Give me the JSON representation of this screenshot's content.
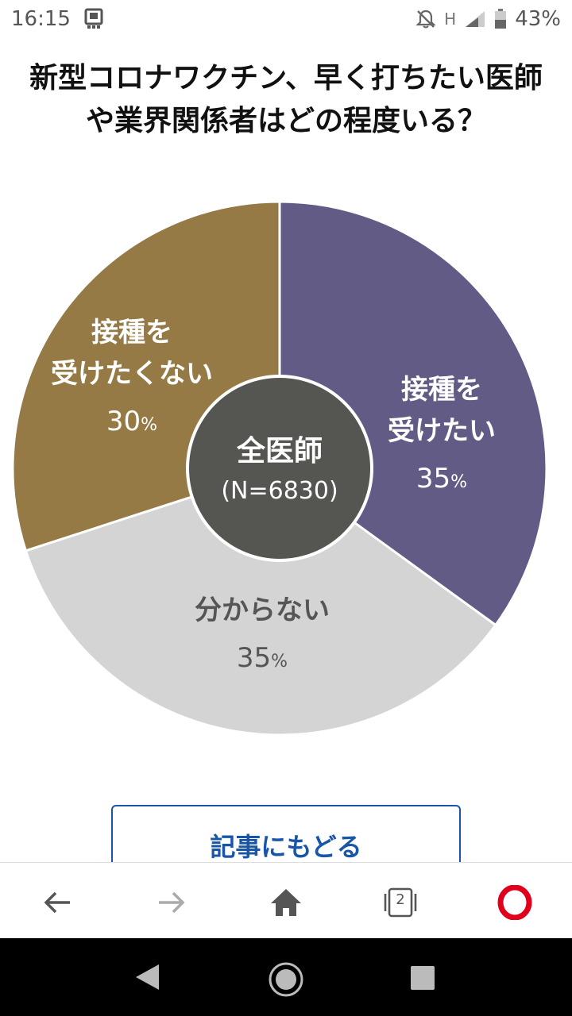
{
  "status_bar": {
    "time": "16:15",
    "network": "H",
    "battery": "43%"
  },
  "title_lines": [
    "新型コロナワクチン、早く打ちたい医師",
    "や業界関係者はどの程度いる？"
  ],
  "chart_data": {
    "type": "pie",
    "title": "新型コロナワクチン、早く打ちたい医師や業界関係者はどの程度いる？",
    "center_label": "全医師",
    "center_sublabel": "(N=6830)",
    "slices": [
      {
        "label_lines": [
          "接種を",
          "受けたい"
        ],
        "value": 35,
        "value_text": "35",
        "color": "#625b86"
      },
      {
        "label_lines": [
          "分からない"
        ],
        "value": 35,
        "value_text": "35",
        "color": "#d4d4d4"
      },
      {
        "label_lines": [
          "接種を",
          "受けたくない"
        ],
        "value": 30,
        "value_text": "30",
        "color": "#957a46"
      }
    ],
    "unit": "%",
    "center_color": "#555552"
  },
  "back_button_label": "記事にもどる",
  "browser_nav": {
    "tab_count": "2"
  }
}
